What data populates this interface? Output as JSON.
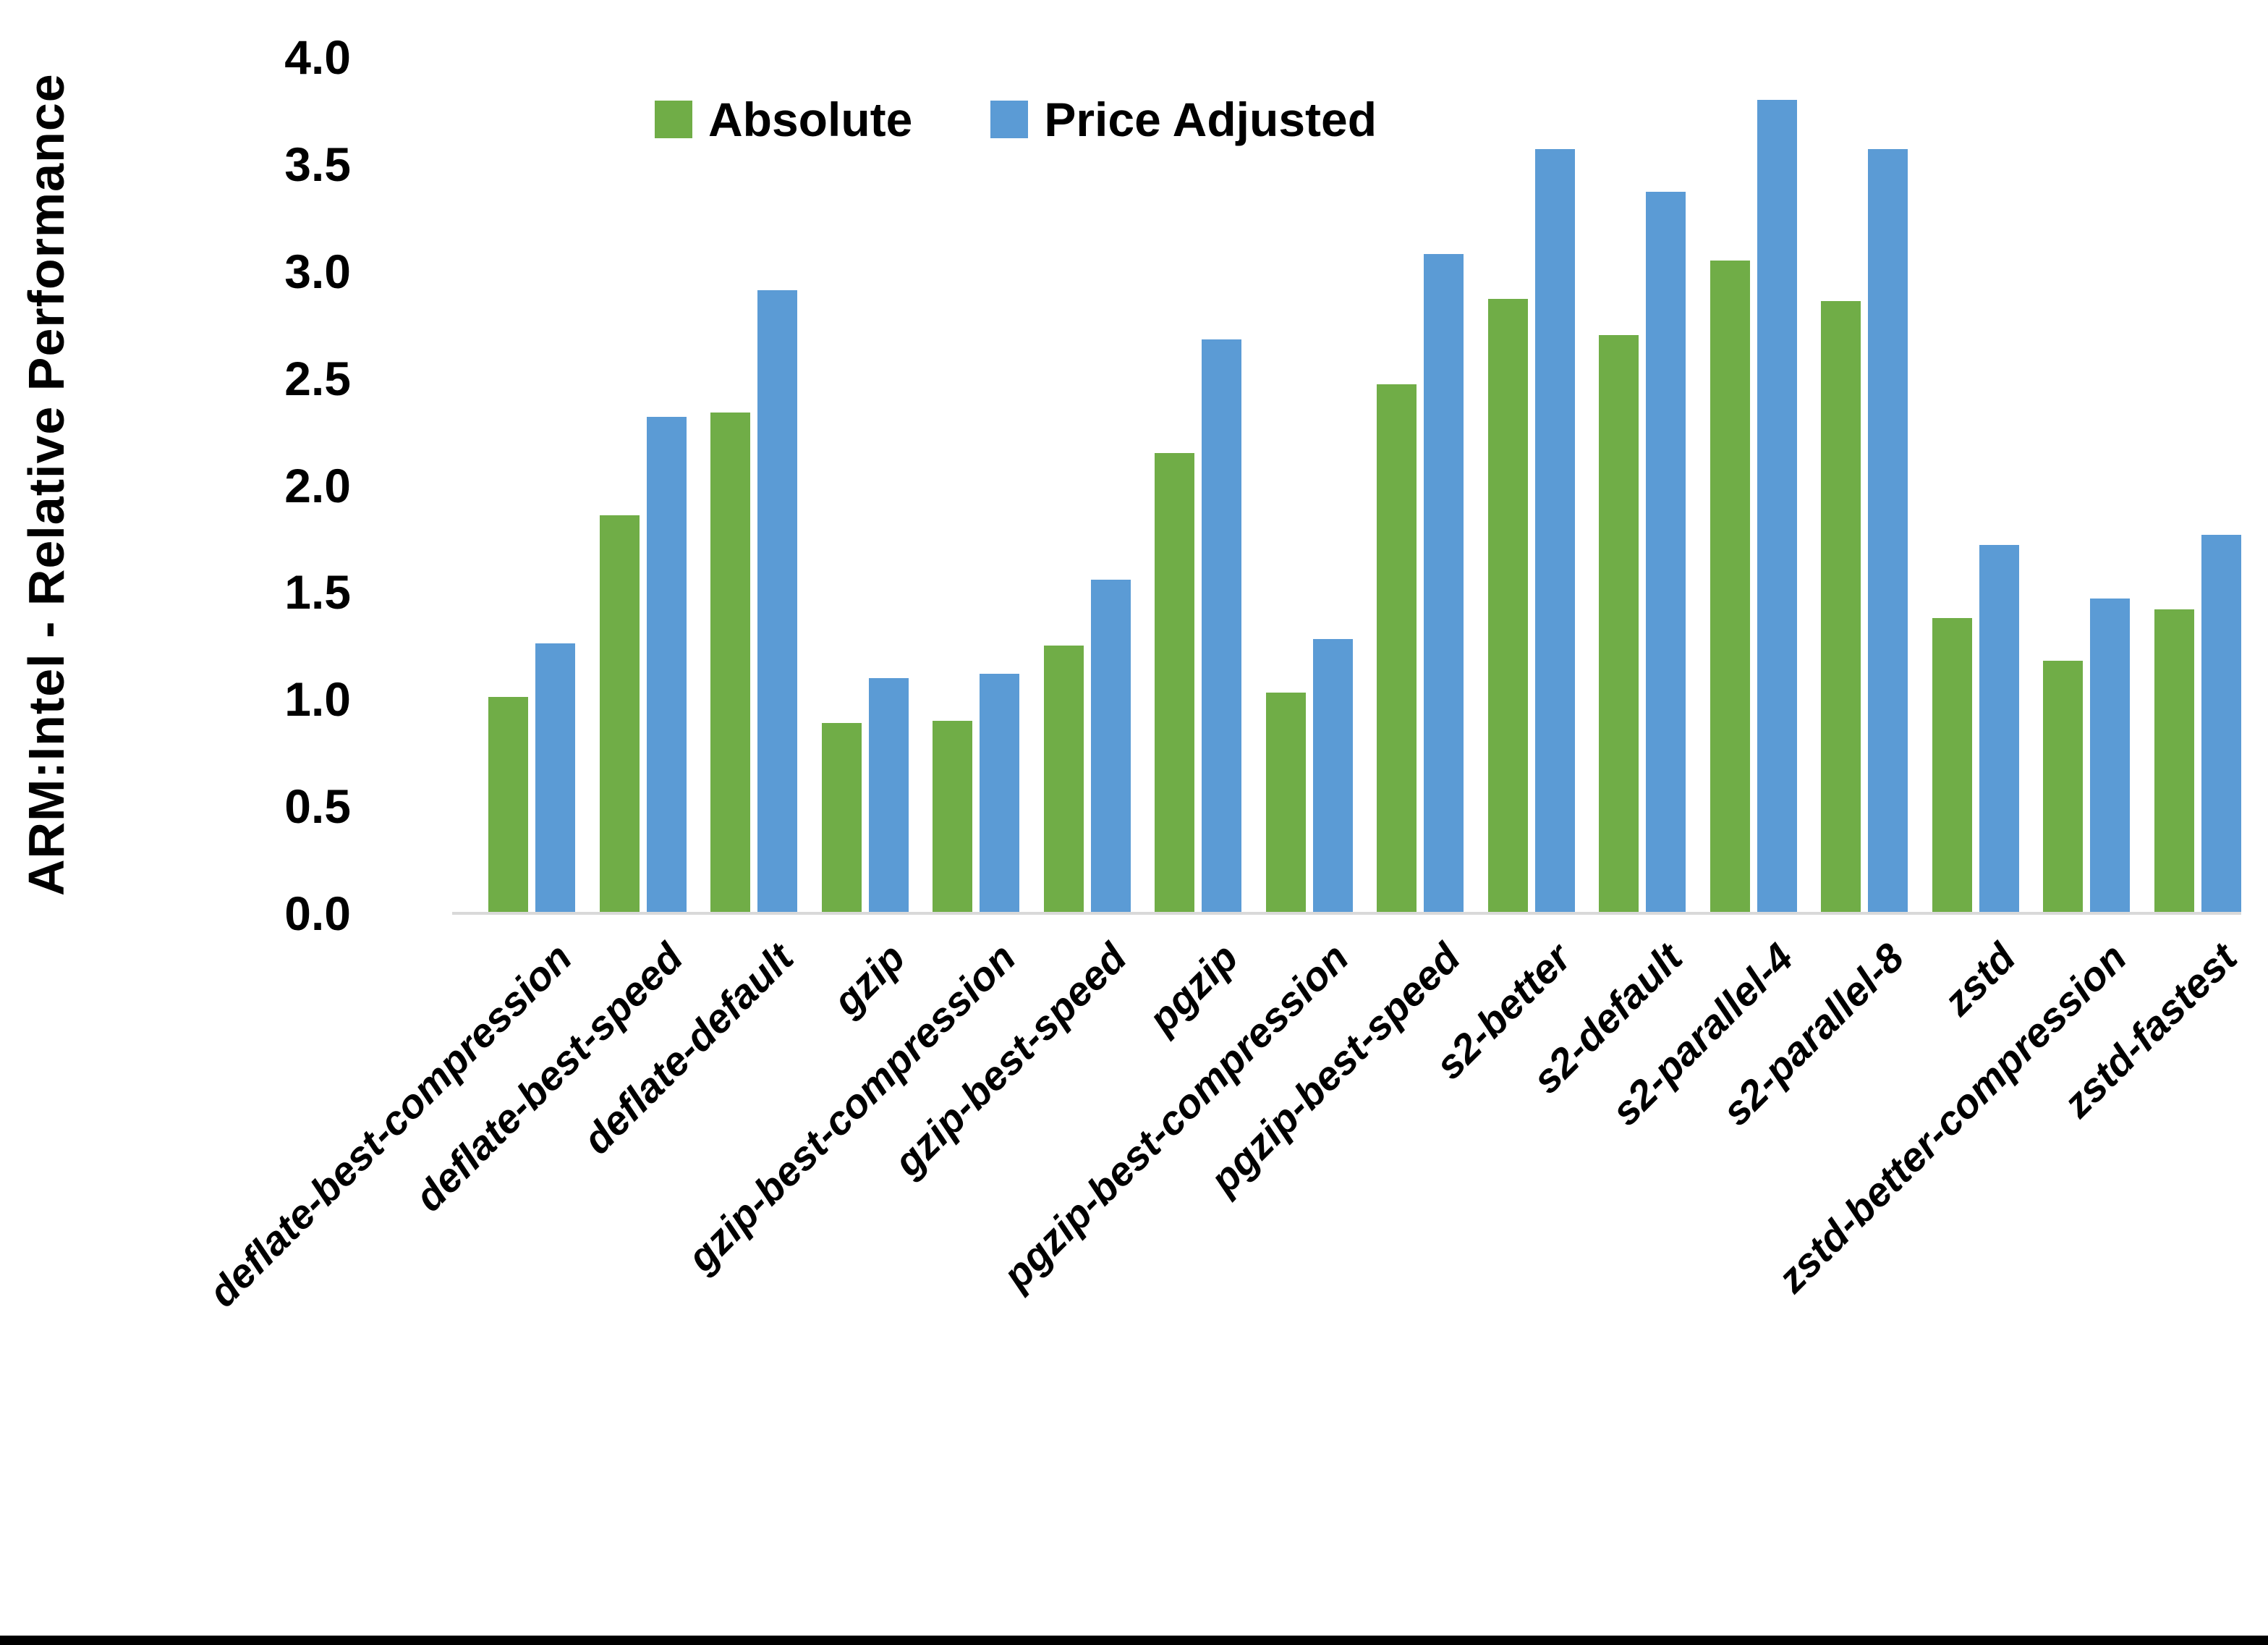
{
  "figure": {
    "background": "#FFFFFF",
    "bottom_border_color": "#000000"
  },
  "chart_data": {
    "type": "bar",
    "title": "",
    "xlabel": "",
    "ylabel": "ARM:Intel - Relative Performance",
    "ylim": [
      0.0,
      4.0
    ],
    "ytick_step": 0.5,
    "ytick_labels": [
      "0.0",
      "0.5",
      "1.0",
      "1.5",
      "2.0",
      "2.5",
      "3.0",
      "3.5",
      "4.0"
    ],
    "grid": false,
    "legend_position": "top-center",
    "axis_line_color": "#D9D9D9",
    "categories": [
      "deflate-best-compression",
      "deflate-best-speed",
      "deflate-default",
      "gzip",
      "gzip-best-compression",
      "gzip-best-speed",
      "pgzip",
      "pgzip-best-compression",
      "pgzip-best-speed",
      "s2-better",
      "s2-default",
      "s2-parallel-4",
      "s2-parallel-8",
      "zstd",
      "zstd-better-compression",
      "zstd-fastest"
    ],
    "series": [
      {
        "name": "Absolute",
        "color": "#70AD47",
        "values": [
          1.01,
          1.86,
          2.34,
          0.89,
          0.9,
          1.25,
          2.15,
          1.03,
          2.47,
          2.87,
          2.7,
          3.05,
          2.86,
          1.38,
          1.18,
          1.42
        ]
      },
      {
        "name": "Price Adjusted",
        "color": "#5B9BD5",
        "values": [
          1.26,
          2.32,
          2.91,
          1.1,
          1.12,
          1.56,
          2.68,
          1.28,
          3.08,
          3.57,
          3.37,
          3.8,
          3.57,
          1.72,
          1.47,
          1.77
        ]
      }
    ]
  }
}
